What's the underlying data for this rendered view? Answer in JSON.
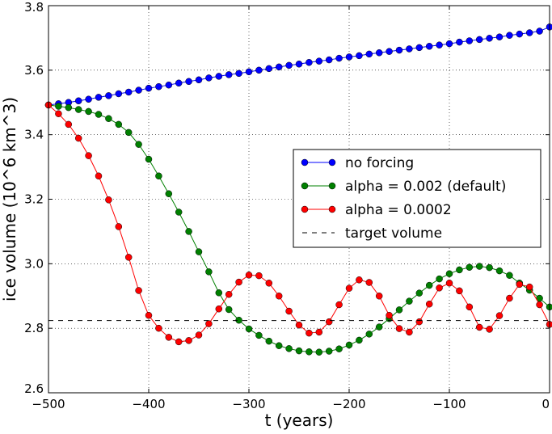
{
  "chart_data": {
    "type": "line",
    "title": "",
    "xlabel": "t (years)",
    "ylabel": "ice volume (10^6 km^3)",
    "xlim": [
      -500,
      0
    ],
    "ylim": [
      2.6,
      3.8
    ],
    "xticks": [
      -500,
      -400,
      -300,
      -200,
      -100,
      0
    ],
    "xtick_labels": [
      "−500",
      "−400",
      "−300",
      "−200",
      "−100",
      "0"
    ],
    "yticks": [
      2.6,
      2.8,
      3.0,
      3.2,
      3.4,
      3.6,
      3.8
    ],
    "ytick_labels": [
      "2.6",
      "2.8",
      "3.0",
      "3.2",
      "3.4",
      "3.6",
      "3.8"
    ],
    "grid": true,
    "legend_position": "center-right",
    "x": [
      -500,
      -490,
      -480,
      -470,
      -460,
      -450,
      -440,
      -430,
      -420,
      -410,
      -400,
      -390,
      -380,
      -370,
      -360,
      -350,
      -340,
      -330,
      -320,
      -310,
      -300,
      -290,
      -280,
      -270,
      -260,
      -250,
      -240,
      -230,
      -220,
      -210,
      -200,
      -190,
      -180,
      -170,
      -160,
      -150,
      -140,
      -130,
      -120,
      -110,
      -100,
      -90,
      -80,
      -70,
      -60,
      -50,
      -40,
      -30,
      -20,
      -10,
      0
    ],
    "series": [
      {
        "name": "no forcing",
        "color": "#0000ff",
        "linestyle": "solid",
        "marker": "circle",
        "values": [
          3.492,
          3.496,
          3.5,
          3.505,
          3.51,
          3.516,
          3.521,
          3.527,
          3.532,
          3.538,
          3.544,
          3.549,
          3.554,
          3.56,
          3.565,
          3.57,
          3.576,
          3.581,
          3.586,
          3.59,
          3.595,
          3.6,
          3.605,
          3.61,
          3.615,
          3.619,
          3.624,
          3.628,
          3.632,
          3.637,
          3.641,
          3.645,
          3.65,
          3.654,
          3.658,
          3.662,
          3.666,
          3.67,
          3.674,
          3.678,
          3.682,
          3.687,
          3.691,
          3.695,
          3.699,
          3.703,
          3.708,
          3.712,
          3.716,
          3.721,
          3.734
        ]
      },
      {
        "name": "alpha = 0.002 (default)",
        "color": "#008000",
        "linestyle": "solid",
        "marker": "circle",
        "values": [
          3.492,
          3.488,
          3.484,
          3.478,
          3.472,
          3.463,
          3.45,
          3.432,
          3.407,
          3.37,
          3.324,
          3.272,
          3.217,
          3.16,
          3.1,
          3.037,
          2.975,
          2.91,
          2.858,
          2.825,
          2.798,
          2.778,
          2.76,
          2.746,
          2.737,
          2.73,
          2.727,
          2.726,
          2.729,
          2.736,
          2.748,
          2.763,
          2.782,
          2.804,
          2.83,
          2.857,
          2.884,
          2.909,
          2.933,
          2.953,
          2.969,
          2.981,
          2.989,
          2.992,
          2.988,
          2.978,
          2.964,
          2.94,
          2.918,
          2.893,
          2.866
        ]
      },
      {
        "name": "alpha = 0.0002",
        "color": "#ff0000",
        "linestyle": "solid",
        "marker": "circle",
        "values": [
          3.492,
          3.465,
          3.432,
          3.389,
          3.335,
          3.272,
          3.198,
          3.115,
          3.02,
          2.917,
          2.84,
          2.8,
          2.772,
          2.758,
          2.762,
          2.779,
          2.814,
          2.86,
          2.905,
          2.943,
          2.965,
          2.963,
          2.94,
          2.9,
          2.853,
          2.81,
          2.785,
          2.788,
          2.82,
          2.873,
          2.924,
          2.95,
          2.942,
          2.9,
          2.84,
          2.799,
          2.788,
          2.82,
          2.875,
          2.925,
          2.94,
          2.916,
          2.866,
          2.803,
          2.797,
          2.839,
          2.893,
          2.936,
          2.928,
          2.873,
          2.812
        ]
      },
      {
        "name": "target volume",
        "color": "#000000",
        "linestyle": "dashed",
        "marker": "none",
        "constant": 2.824
      }
    ]
  }
}
